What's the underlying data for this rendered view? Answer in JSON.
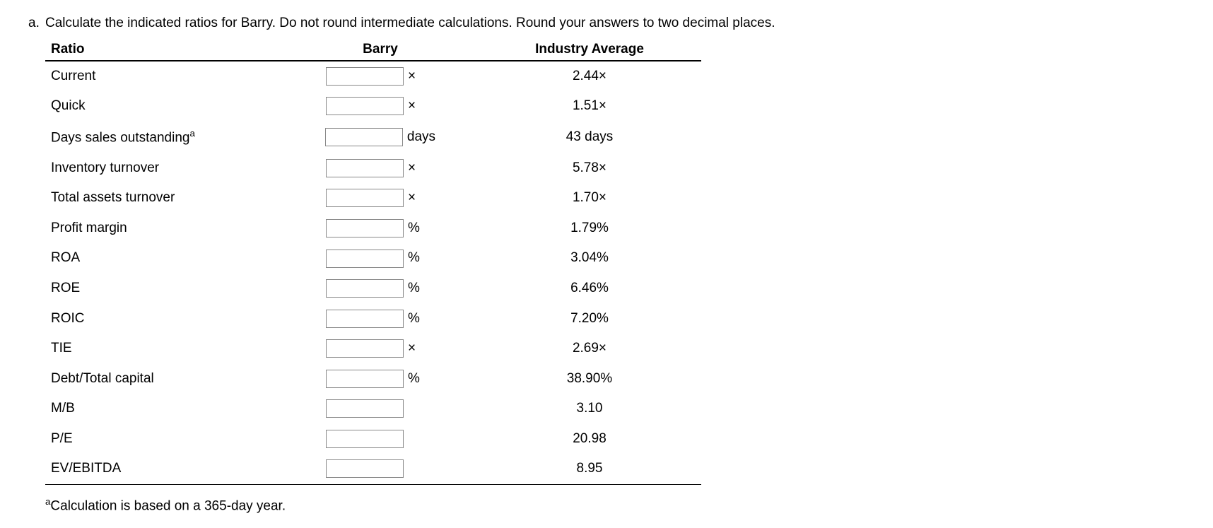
{
  "question_marker": "a.",
  "instruction_text": "Calculate the indicated ratios for Barry. Do not round intermediate calculations. Round your answers to two decimal places.",
  "headers": {
    "ratio": "Ratio",
    "barry": "Barry",
    "industry": "Industry Average"
  },
  "rows": [
    {
      "label": "Current",
      "sup": "",
      "unit": "×",
      "industry": "2.44×"
    },
    {
      "label": "Quick",
      "sup": "",
      "unit": "×",
      "industry": "1.51×"
    },
    {
      "label": "Days sales outstanding",
      "sup": "a",
      "unit": "days",
      "industry": "43 days"
    },
    {
      "label": "Inventory turnover",
      "sup": "",
      "unit": "×",
      "industry": "5.78×"
    },
    {
      "label": "Total assets turnover",
      "sup": "",
      "unit": "×",
      "industry": "1.70×"
    },
    {
      "label": "Profit margin",
      "sup": "",
      "unit": "%",
      "industry": "1.79%"
    },
    {
      "label": "ROA",
      "sup": "",
      "unit": "%",
      "industry": "3.04%"
    },
    {
      "label": "ROE",
      "sup": "",
      "unit": "%",
      "industry": "6.46%"
    },
    {
      "label": "ROIC",
      "sup": "",
      "unit": "%",
      "industry": "7.20%"
    },
    {
      "label": "TIE",
      "sup": "",
      "unit": "×",
      "industry": "2.69×"
    },
    {
      "label": "Debt/Total capital",
      "sup": "",
      "unit": "%",
      "industry": "38.90%"
    },
    {
      "label": "M/B",
      "sup": "",
      "unit": "",
      "industry": "3.10"
    },
    {
      "label": "P/E",
      "sup": "",
      "unit": "",
      "industry": "20.98"
    },
    {
      "label": "EV/EBITDA",
      "sup": "",
      "unit": "",
      "industry": "8.95"
    }
  ],
  "footnote_sup": "a",
  "footnote_text": "Calculation is based on a 365-day year."
}
